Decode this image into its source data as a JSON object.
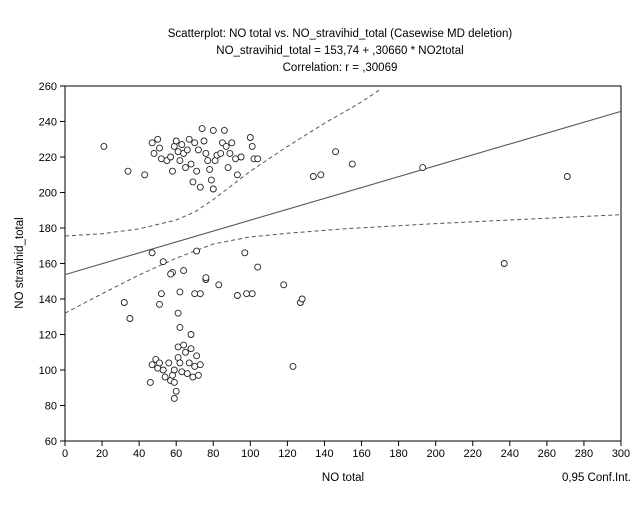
{
  "chart_data": {
    "type": "scatter",
    "title_lines": [
      "Scatterplot: NO total vs. NO_stravihid_total (Casewise MD deletion)",
      "NO_stravihid_total = 153,74 + ,30660 * NO2total",
      "Correlation: r = ,30069"
    ],
    "xlabel": "NO total",
    "ylabel": "NO stravihid_total",
    "xlim": [
      0,
      300
    ],
    "ylim": [
      60,
      260
    ],
    "xticks": [
      0,
      20,
      40,
      60,
      80,
      100,
      120,
      140,
      160,
      180,
      200,
      220,
      240,
      260,
      280,
      300
    ],
    "yticks": [
      60,
      80,
      100,
      120,
      140,
      160,
      180,
      200,
      220,
      240,
      260
    ],
    "grid": false,
    "legend_text": "0,95 Conf.Int.",
    "regression": {
      "intercept": 153.74,
      "slope": 0.3066
    },
    "ci_upper": [
      [
        0,
        175.5
      ],
      [
        20,
        176.8
      ],
      [
        40,
        179.5
      ],
      [
        60,
        184.5
      ],
      [
        70,
        189
      ],
      [
        80,
        196
      ],
      [
        90,
        204
      ],
      [
        100,
        212
      ],
      [
        110,
        219
      ],
      [
        120,
        226
      ],
      [
        140,
        239
      ],
      [
        160,
        251
      ],
      [
        170,
        258
      ]
    ],
    "ci_lower": [
      [
        0,
        132
      ],
      [
        20,
        143
      ],
      [
        40,
        153.5
      ],
      [
        60,
        163
      ],
      [
        70,
        167
      ],
      [
        80,
        171
      ],
      [
        90,
        173
      ],
      [
        100,
        175
      ],
      [
        120,
        177
      ],
      [
        150,
        179.5
      ],
      [
        200,
        182.5
      ],
      [
        250,
        185
      ],
      [
        300,
        187.5
      ]
    ],
    "points": [
      [
        21,
        226
      ],
      [
        34,
        212
      ],
      [
        43,
        210
      ],
      [
        48,
        222
      ],
      [
        47,
        228
      ],
      [
        50,
        230
      ],
      [
        52,
        219
      ],
      [
        51,
        225
      ],
      [
        55,
        218
      ],
      [
        57,
        220
      ],
      [
        58,
        212
      ],
      [
        59,
        226
      ],
      [
        60,
        229
      ],
      [
        61,
        223
      ],
      [
        62,
        218
      ],
      [
        63,
        227
      ],
      [
        64,
        222
      ],
      [
        65,
        214
      ],
      [
        66,
        224
      ],
      [
        67,
        230
      ],
      [
        68,
        216
      ],
      [
        69,
        206
      ],
      [
        70,
        228
      ],
      [
        71,
        212
      ],
      [
        72,
        224
      ],
      [
        73,
        203
      ],
      [
        74,
        236
      ],
      [
        75,
        229
      ],
      [
        76,
        222
      ],
      [
        77,
        218
      ],
      [
        78,
        213
      ],
      [
        79,
        207
      ],
      [
        80,
        235
      ],
      [
        80,
        202
      ],
      [
        81,
        218
      ],
      [
        82,
        221
      ],
      [
        84,
        222
      ],
      [
        85,
        228
      ],
      [
        86,
        235
      ],
      [
        87,
        226
      ],
      [
        88,
        214
      ],
      [
        89,
        222
      ],
      [
        90,
        228
      ],
      [
        92,
        219
      ],
      [
        93,
        210
      ],
      [
        95,
        220
      ],
      [
        100,
        231
      ],
      [
        101,
        226
      ],
      [
        102,
        219
      ],
      [
        104,
        219
      ],
      [
        134,
        209
      ],
      [
        138,
        210
      ],
      [
        146,
        223
      ],
      [
        155,
        216
      ],
      [
        193,
        214
      ],
      [
        271,
        209
      ],
      [
        32,
        138
      ],
      [
        35,
        129
      ],
      [
        47,
        166
      ],
      [
        51,
        137
      ],
      [
        52,
        143
      ],
      [
        53,
        161
      ],
      [
        58,
        155
      ],
      [
        61,
        132
      ],
      [
        62,
        144
      ],
      [
        64,
        156
      ],
      [
        57,
        154
      ],
      [
        70,
        143
      ],
      [
        71,
        167
      ],
      [
        73,
        143
      ],
      [
        76,
        151
      ],
      [
        76,
        152
      ],
      [
        83,
        148
      ],
      [
        93,
        142
      ],
      [
        97,
        166
      ],
      [
        98,
        143
      ],
      [
        101,
        143
      ],
      [
        104,
        158
      ],
      [
        118,
        148
      ],
      [
        127,
        138
      ],
      [
        128,
        140
      ],
      [
        237,
        160
      ],
      [
        46,
        93
      ],
      [
        47,
        103
      ],
      [
        49,
        106
      ],
      [
        50,
        101
      ],
      [
        51,
        104
      ],
      [
        53,
        100
      ],
      [
        54,
        96
      ],
      [
        56,
        104
      ],
      [
        57,
        94
      ],
      [
        58,
        97
      ],
      [
        59,
        100
      ],
      [
        59,
        84
      ],
      [
        60,
        88
      ],
      [
        61,
        113
      ],
      [
        61,
        107
      ],
      [
        62,
        104
      ],
      [
        63,
        99
      ],
      [
        64,
        114
      ],
      [
        65,
        110
      ],
      [
        66,
        98
      ],
      [
        67,
        104
      ],
      [
        68,
        112
      ],
      [
        69,
        96
      ],
      [
        70,
        102
      ],
      [
        71,
        108
      ],
      [
        72,
        97
      ],
      [
        68,
        120
      ],
      [
        62,
        124
      ],
      [
        73,
        103
      ],
      [
        59,
        93
      ],
      [
        123,
        102
      ]
    ]
  }
}
